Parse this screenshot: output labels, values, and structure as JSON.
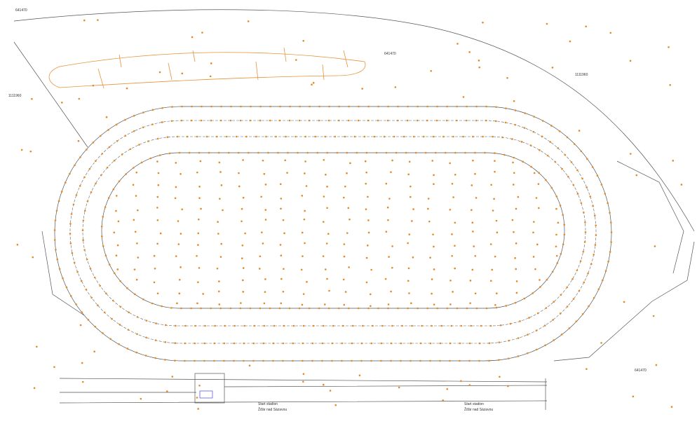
{
  "annotations": [
    "641470",
    "1111960",
    "641470",
    "1111960",
    "641470",
    "Start stadion",
    "Žďár nad Sázavou",
    "Start stadion",
    "Žďár nad Sázavou"
  ]
}
